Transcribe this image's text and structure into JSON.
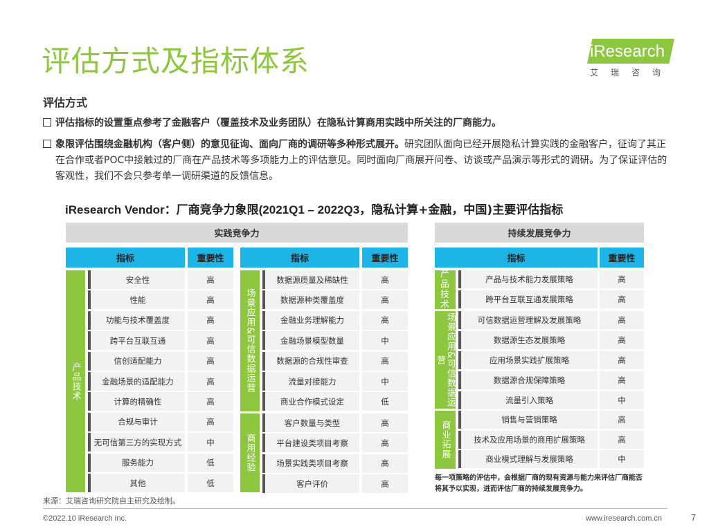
{
  "title": "评估方式及指标体系",
  "logo": {
    "text": "iResearch",
    "sub": "艾瑞咨询"
  },
  "section_heading": "评估方式",
  "bullets": [
    {
      "bold": "评估指标的设置重点参考了金融客户（覆盖技术及业务团队）在隐私计算商用实践中所关注的厂商能力。",
      "text": ""
    },
    {
      "bold": "象限评估围绕金融机构（客户侧）的意见征询、面向厂商的调研等多种形式展开。",
      "text": "研究团队面向已经开展隐私计算实践的金融客户，征询了其正在合作或者POC中接触过的厂商在产品技术等多项能力上的评估意见。同时面向厂商展开问卷、访谈或产品演示等形式的调研。为了保证评估的客观性，我们不会只参考单一调研渠道的反馈信息。"
    }
  ],
  "table_title": {
    "prefix": "iResearch Vendor：",
    "cn1": "厂商竞争力象限",
    "mid": "(2021Q1 – 2022Q3，",
    "cn2": "隐私计算+金融，中国)主要评估指标"
  },
  "practice": {
    "header": "实践竞争力",
    "col_indicator": "指标",
    "col_importance": "重要性",
    "group1": {
      "label": "产品技术",
      "rows": [
        {
          "name": "安全性",
          "imp": "高"
        },
        {
          "name": "性能",
          "imp": "高"
        },
        {
          "name": "功能与技术覆盖度",
          "imp": "高"
        },
        {
          "name": "跨平台互联互通",
          "imp": "高"
        },
        {
          "name": "信创适配能力",
          "imp": "高"
        },
        {
          "name": "金融场景的适配能力",
          "imp": "高"
        },
        {
          "name": "计算的精确性",
          "imp": "高"
        },
        {
          "name": "合规与审计",
          "imp": "高"
        },
        {
          "name": "无可信第三方的实现方式",
          "imp": "中"
        },
        {
          "name": "服务能力",
          "imp": "低"
        },
        {
          "name": "其他",
          "imp": "低"
        }
      ]
    },
    "group2": {
      "label": "场景应用&可信数据运营",
      "rows": [
        {
          "name": "数据源质量及稀缺性",
          "imp": "高"
        },
        {
          "name": "数据源种类覆盖度",
          "imp": "高"
        },
        {
          "name": "金融业务理解能力",
          "imp": "高"
        },
        {
          "name": "金融场景模型数量",
          "imp": "中"
        },
        {
          "name": "数据源的合规性审查",
          "imp": "高"
        },
        {
          "name": "流量对接能力",
          "imp": "中"
        },
        {
          "name": "商业合作模式设定",
          "imp": "低"
        }
      ]
    },
    "group3": {
      "label": "商用经验",
      "rows": [
        {
          "name": "客户数量与类型",
          "imp": "高"
        },
        {
          "name": "平台建设类项目考察",
          "imp": "高"
        },
        {
          "name": "场景实践类项目考察",
          "imp": "高"
        },
        {
          "name": "客户评价",
          "imp": "高"
        }
      ]
    }
  },
  "sustain": {
    "header": "持续发展竞争力",
    "col_indicator": "指标",
    "col_importance": "重要性",
    "group1": {
      "label": "产品技术",
      "rows": [
        {
          "name": "产品与技术能力发展策略",
          "imp": "高"
        },
        {
          "name": "跨平台互联互通发展策略",
          "imp": "高"
        }
      ]
    },
    "group2": {
      "label": "场景应用&可信数据运营",
      "rows": [
        {
          "name": "可信数据运营理解及发展策略",
          "imp": "高"
        },
        {
          "name": "数据源生态发展策略",
          "imp": "高"
        },
        {
          "name": "应用场景实践扩展策略",
          "imp": "高"
        },
        {
          "name": "数据源合规保障策略",
          "imp": "高"
        },
        {
          "name": "流量引入策略",
          "imp": "中"
        }
      ]
    },
    "group3": {
      "label": "商业拓展",
      "rows": [
        {
          "name": "销售与营销策略",
          "imp": "高"
        },
        {
          "name": "技术及应用场景的商用扩展策略",
          "imp": "高"
        },
        {
          "name": "商业模式理解与发展策略",
          "imp": "中"
        }
      ]
    },
    "note": "每一项策略的评估中，会根据厂商的现有资源与能力来评估厂商能否将其予以实现，进而评估厂商的持续发展竞争力。"
  },
  "colors": {
    "green": "#8dc63f",
    "blue": "#1eb5e6",
    "gray": "#d9d9d9",
    "cell": "#f2f2f2"
  },
  "source": "来源：艾瑞咨询研究院自主研究及绘制。",
  "footer_left": "©2022.10 iResearch Inc.",
  "footer_right": "www.iresearch.com.cn",
  "page_number": "7"
}
